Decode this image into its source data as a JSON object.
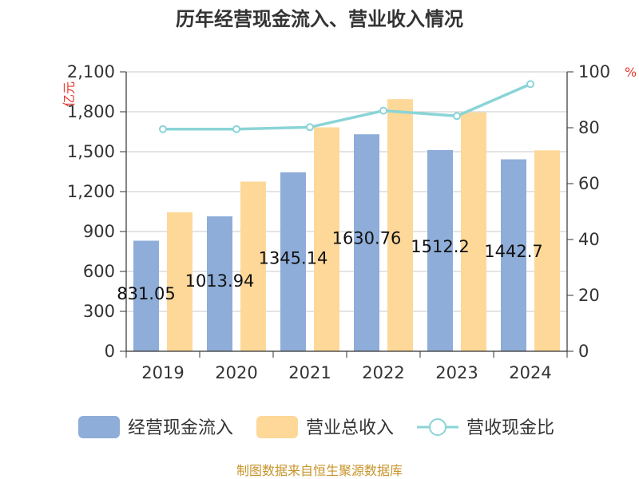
{
  "chart_data": {
    "type": "bar",
    "title": "历年经营现金流入、营业收入情况",
    "categories": [
      "2019",
      "2020",
      "2021",
      "2022",
      "2023",
      "2024"
    ],
    "series": [
      {
        "name": "经营现金流入",
        "type": "bar",
        "axis": "left",
        "color": "#8eadd9",
        "values": [
          831.05,
          1013.94,
          1345.14,
          1630.76,
          1512.2,
          1442.7
        ],
        "labels": [
          "831.05",
          "1013.94",
          "1345.14",
          "1630.76",
          "1512.2",
          "1442.7"
        ]
      },
      {
        "name": "营业总收入",
        "type": "bar",
        "axis": "left",
        "color": "#fdd898",
        "values": [
          1045,
          1275,
          1683,
          1895,
          1795,
          1510
        ]
      },
      {
        "name": "营收现金比",
        "type": "line",
        "axis": "right",
        "color": "#8ad4d6",
        "values": [
          79.5,
          79.5,
          80.2,
          86.1,
          84.2,
          95.6
        ]
      }
    ],
    "y_left": {
      "label": "亿元",
      "ylim": [
        0,
        2100
      ],
      "ticks": [
        "0",
        "300",
        "600",
        "900",
        "1,200",
        "1,500",
        "1,800",
        "2,100"
      ]
    },
    "y_right": {
      "label": "%",
      "ylim": [
        0,
        100
      ],
      "ticks": [
        "0",
        "20",
        "40",
        "60",
        "80",
        "100"
      ]
    },
    "grid": true,
    "legend_position": "bottom"
  },
  "source": "制图数据来自恒生聚源数据库"
}
